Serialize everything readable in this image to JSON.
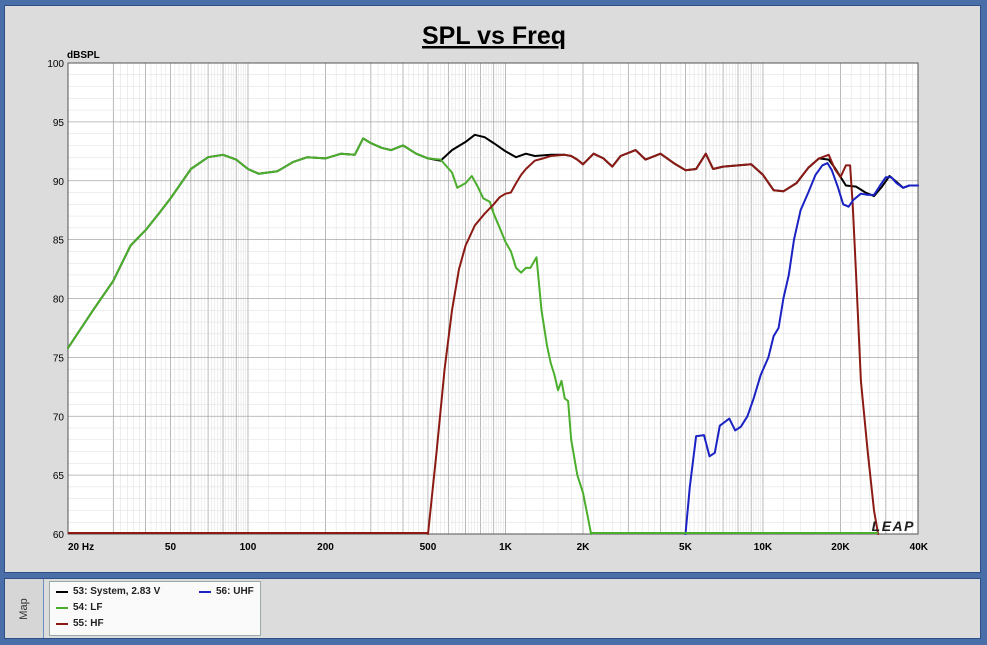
{
  "chart_data": {
    "type": "line",
    "title": "SPL vs Freq",
    "ylabel": "dBSPL",
    "xlabel": "",
    "x_scale": "log",
    "xlim": [
      20,
      40000
    ],
    "ylim": [
      60,
      100
    ],
    "grid": true,
    "legend_position": "bottom",
    "x_tick_labels": [
      {
        "value": 20,
        "label": "20  Hz"
      },
      {
        "value": 50,
        "label": "50"
      },
      {
        "value": 100,
        "label": "100"
      },
      {
        "value": 200,
        "label": "200"
      },
      {
        "value": 500,
        "label": "500"
      },
      {
        "value": 1000,
        "label": "1K"
      },
      {
        "value": 2000,
        "label": "2K"
      },
      {
        "value": 5000,
        "label": "5K"
      },
      {
        "value": 10000,
        "label": "10K"
      },
      {
        "value": 20000,
        "label": "20K"
      },
      {
        "value": 40000,
        "label": "40K"
      }
    ],
    "y_ticks": [
      60,
      65,
      70,
      75,
      80,
      85,
      90,
      95,
      100
    ],
    "series": [
      {
        "name": "53: System, 2.83 V",
        "color": "#000000",
        "points": [
          [
            20,
            75.8
          ],
          [
            25,
            79
          ],
          [
            30,
            81.5
          ],
          [
            35,
            84.5
          ],
          [
            40,
            85.8
          ],
          [
            45,
            87.2
          ],
          [
            50,
            88.5
          ],
          [
            60,
            91
          ],
          [
            70,
            92
          ],
          [
            80,
            92.2
          ],
          [
            90,
            91.8
          ],
          [
            100,
            91
          ],
          [
            110,
            90.6
          ],
          [
            130,
            90.8
          ],
          [
            150,
            91.6
          ],
          [
            170,
            92
          ],
          [
            200,
            91.9
          ],
          [
            230,
            92.3
          ],
          [
            260,
            92.2
          ],
          [
            280,
            93.6
          ],
          [
            300,
            93.2
          ],
          [
            330,
            92.8
          ],
          [
            360,
            92.6
          ],
          [
            400,
            93
          ],
          [
            450,
            92.3
          ],
          [
            500,
            91.9
          ],
          [
            560,
            91.7
          ],
          [
            620,
            92.6
          ],
          [
            700,
            93.3
          ],
          [
            760,
            93.9
          ],
          [
            830,
            93.7
          ],
          [
            900,
            93.2
          ],
          [
            1000,
            92.5
          ],
          [
            1100,
            92
          ],
          [
            1200,
            92.3
          ],
          [
            1300,
            92.1
          ],
          [
            1500,
            92.2
          ],
          [
            1700,
            92.2
          ],
          [
            1800,
            92.1
          ],
          [
            1900,
            91.8
          ],
          [
            2000,
            91.4
          ],
          [
            2200,
            92.3
          ],
          [
            2400,
            91.9
          ],
          [
            2600,
            91.2
          ],
          [
            2800,
            92.1
          ],
          [
            3200,
            92.6
          ],
          [
            3500,
            91.8
          ],
          [
            4000,
            92.3
          ],
          [
            4500,
            91.5
          ],
          [
            5000,
            90.9
          ],
          [
            5500,
            91
          ],
          [
            6000,
            92.3
          ],
          [
            6400,
            91
          ],
          [
            7000,
            91.2
          ],
          [
            8000,
            91.3
          ],
          [
            9000,
            91.4
          ],
          [
            10000,
            90.5
          ],
          [
            11000,
            89.2
          ],
          [
            12000,
            89.1
          ],
          [
            13500,
            89.8
          ],
          [
            15000,
            91.1
          ],
          [
            16500,
            91.9
          ],
          [
            18000,
            91.8
          ],
          [
            19000,
            91.1
          ],
          [
            21000,
            89.6
          ],
          [
            23000,
            89.5
          ],
          [
            25000,
            89
          ],
          [
            27000,
            88.7
          ],
          [
            29000,
            89.5
          ],
          [
            31000,
            90.4
          ],
          [
            33000,
            89.9
          ],
          [
            35000,
            89.4
          ],
          [
            37000,
            89.6
          ],
          [
            40000,
            89.6
          ]
        ]
      },
      {
        "name": "54: LF",
        "color": "#4bae2c",
        "points": [
          [
            20,
            75.8
          ],
          [
            25,
            79
          ],
          [
            30,
            81.5
          ],
          [
            35,
            84.5
          ],
          [
            40,
            85.8
          ],
          [
            45,
            87.2
          ],
          [
            50,
            88.5
          ],
          [
            60,
            91
          ],
          [
            70,
            92
          ],
          [
            80,
            92.2
          ],
          [
            90,
            91.8
          ],
          [
            100,
            91
          ],
          [
            110,
            90.6
          ],
          [
            130,
            90.8
          ],
          [
            150,
            91.6
          ],
          [
            170,
            92
          ],
          [
            200,
            91.9
          ],
          [
            230,
            92.3
          ],
          [
            260,
            92.2
          ],
          [
            280,
            93.6
          ],
          [
            300,
            93.2
          ],
          [
            330,
            92.8
          ],
          [
            360,
            92.6
          ],
          [
            400,
            93
          ],
          [
            450,
            92.3
          ],
          [
            500,
            91.9
          ],
          [
            560,
            91.8
          ],
          [
            620,
            90.7
          ],
          [
            650,
            89.4
          ],
          [
            700,
            89.8
          ],
          [
            740,
            90.4
          ],
          [
            780,
            89.5
          ],
          [
            820,
            88.5
          ],
          [
            870,
            88.2
          ],
          [
            900,
            87.2
          ],
          [
            950,
            86
          ],
          [
            1000,
            84.8
          ],
          [
            1050,
            84
          ],
          [
            1100,
            82.6
          ],
          [
            1150,
            82.2
          ],
          [
            1200,
            82.6
          ],
          [
            1250,
            82.6
          ],
          [
            1320,
            83.5
          ],
          [
            1380,
            79
          ],
          [
            1450,
            76
          ],
          [
            1500,
            74.5
          ],
          [
            1550,
            73.5
          ],
          [
            1600,
            72.2
          ],
          [
            1650,
            73
          ],
          [
            1700,
            71.5
          ],
          [
            1750,
            71.3
          ],
          [
            1800,
            68
          ],
          [
            1900,
            65
          ],
          [
            2000,
            63.5
          ],
          [
            2100,
            61.2
          ],
          [
            2150,
            60
          ]
        ]
      },
      {
        "name": "55: HF",
        "color": "#8b1a14",
        "points": [
          [
            500,
            60
          ],
          [
            540,
            67
          ],
          [
            580,
            74
          ],
          [
            620,
            79
          ],
          [
            660,
            82.5
          ],
          [
            700,
            84.5
          ],
          [
            760,
            86.2
          ],
          [
            830,
            87.2
          ],
          [
            900,
            88
          ],
          [
            950,
            88.6
          ],
          [
            1000,
            88.9
          ],
          [
            1050,
            89
          ],
          [
            1100,
            89.8
          ],
          [
            1150,
            90.5
          ],
          [
            1200,
            91
          ],
          [
            1300,
            91.7
          ],
          [
            1400,
            91.9
          ],
          [
            1500,
            92.1
          ],
          [
            1700,
            92.2
          ],
          [
            1800,
            92.1
          ],
          [
            1900,
            91.8
          ],
          [
            2000,
            91.4
          ],
          [
            2200,
            92.3
          ],
          [
            2400,
            91.9
          ],
          [
            2600,
            91.2
          ],
          [
            2800,
            92.1
          ],
          [
            3200,
            92.6
          ],
          [
            3500,
            91.8
          ],
          [
            4000,
            92.3
          ],
          [
            4500,
            91.5
          ],
          [
            5000,
            90.9
          ],
          [
            5500,
            91
          ],
          [
            6000,
            92.3
          ],
          [
            6400,
            91
          ],
          [
            7000,
            91.2
          ],
          [
            8000,
            91.3
          ],
          [
            9000,
            91.4
          ],
          [
            10000,
            90.5
          ],
          [
            11000,
            89.2
          ],
          [
            12000,
            89.1
          ],
          [
            13500,
            89.8
          ],
          [
            15000,
            91.1
          ],
          [
            16500,
            91.9
          ],
          [
            18000,
            92.2
          ],
          [
            19000,
            91
          ],
          [
            20000,
            90.3
          ],
          [
            21000,
            91.3
          ],
          [
            21800,
            91.3
          ],
          [
            22300,
            88
          ],
          [
            23000,
            82
          ],
          [
            24000,
            73
          ],
          [
            25500,
            67
          ],
          [
            27000,
            62
          ],
          [
            28000,
            60
          ]
        ]
      },
      {
        "name": "56: UHF",
        "color": "#1a22c4",
        "points": [
          [
            5000,
            60
          ],
          [
            5200,
            64
          ],
          [
            5500,
            68.3
          ],
          [
            5900,
            68.4
          ],
          [
            6200,
            66.6
          ],
          [
            6500,
            66.9
          ],
          [
            6800,
            69.2
          ],
          [
            7100,
            69.5
          ],
          [
            7400,
            69.8
          ],
          [
            7800,
            68.8
          ],
          [
            8200,
            69.1
          ],
          [
            8700,
            70
          ],
          [
            9200,
            71.5
          ],
          [
            9800,
            73.5
          ],
          [
            10500,
            75
          ],
          [
            11000,
            76.8
          ],
          [
            11500,
            77.5
          ],
          [
            12000,
            80
          ],
          [
            12600,
            82
          ],
          [
            13200,
            85
          ],
          [
            14000,
            87.5
          ],
          [
            15000,
            89
          ],
          [
            16000,
            90.5
          ],
          [
            17000,
            91.3
          ],
          [
            17800,
            91.5
          ],
          [
            18500,
            90.9
          ],
          [
            19500,
            89.5
          ],
          [
            20500,
            88
          ],
          [
            21500,
            87.8
          ],
          [
            22500,
            88.4
          ],
          [
            24000,
            88.9
          ],
          [
            25500,
            88.8
          ],
          [
            27000,
            88.8
          ],
          [
            28500,
            89.6
          ],
          [
            30000,
            90.3
          ],
          [
            31500,
            90.3
          ],
          [
            33000,
            89.8
          ],
          [
            35000,
            89.4
          ],
          [
            37000,
            89.6
          ],
          [
            40000,
            89.6
          ]
        ]
      }
    ]
  },
  "watermark": "LEAP",
  "sidebar_tab": "Map"
}
